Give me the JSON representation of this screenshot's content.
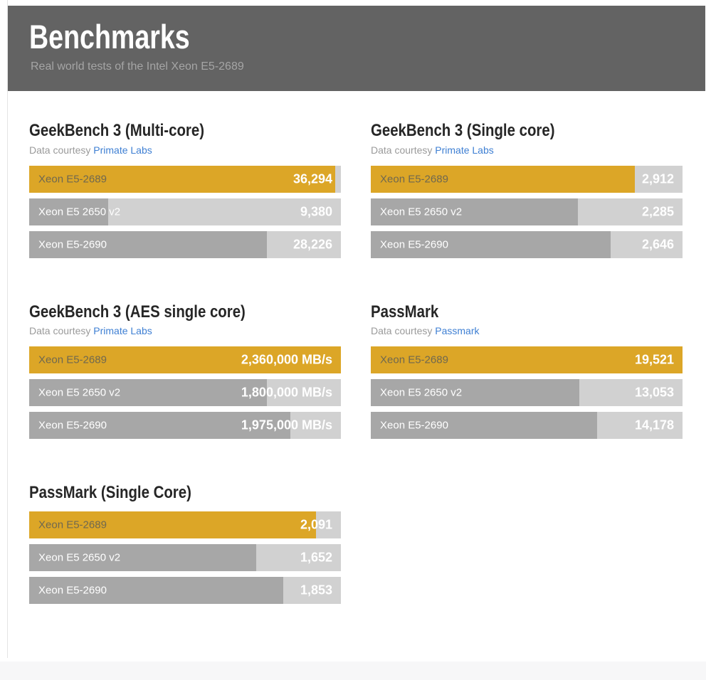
{
  "header": {
    "title": "Benchmarks",
    "subtitle": "Real world tests of the Intel Xeon E5-2689"
  },
  "theme": {
    "header_bg": "#636363",
    "highlight_gold": "#dca627",
    "bar_fill_gray": "#a7a7a7",
    "bar_track_gray": "#d1d1d1",
    "link_blue": "#3e7fd3",
    "highlight_label_color": "#6f6850",
    "value_text_color": "#ffffff"
  },
  "chart_data": [
    {
      "type": "bar",
      "title": "GeekBench 3 (Multi-core)",
      "courtesy": {
        "prefix": "Data courtesy ",
        "link": "Primate Labs"
      },
      "categories": [
        "Xeon E5-2689",
        "Xeon E5 2650 v2",
        "Xeon E5-2690"
      ],
      "values": [
        36294,
        9380,
        28226
      ],
      "value_labels": [
        "36,294",
        "9,380",
        "28,226"
      ],
      "scale_max": 37000,
      "highlight_index": 0,
      "legend_position": "none",
      "grid": false
    },
    {
      "type": "bar",
      "title": "GeekBench 3 (Single core)",
      "courtesy": {
        "prefix": "Data courtesy ",
        "link": "Primate Labs"
      },
      "categories": [
        "Xeon E5-2689",
        "Xeon E5 2650 v2",
        "Xeon E5-2690"
      ],
      "values": [
        2912,
        2285,
        2646
      ],
      "value_labels": [
        "2,912",
        "2,285",
        "2,646"
      ],
      "scale_max": 3440,
      "highlight_index": 0,
      "legend_position": "none",
      "grid": false
    },
    {
      "type": "bar",
      "title": "GeekBench 3 (AES single core)",
      "courtesy": {
        "prefix": "Data courtesy ",
        "link": "Primate Labs"
      },
      "categories": [
        "Xeon E5-2689",
        "Xeon E5 2650 v2",
        "Xeon E5-2690"
      ],
      "values": [
        2360000,
        1800000,
        1975000
      ],
      "value_labels": [
        "2,360,000 MB/s",
        "1,800,000 MB/s",
        "1,975,000 MB/s"
      ],
      "scale_max": 2360000,
      "highlight_index": 0,
      "legend_position": "none",
      "grid": false
    },
    {
      "type": "bar",
      "title": "PassMark",
      "courtesy": {
        "prefix": "Data courtesy ",
        "link": "Passmark"
      },
      "categories": [
        "Xeon E5-2689",
        "Xeon E5 2650 v2",
        "Xeon E5-2690"
      ],
      "values": [
        19521,
        13053,
        14178
      ],
      "value_labels": [
        "19,521",
        "13,053",
        "14,178"
      ],
      "scale_max": 19521,
      "highlight_index": 0,
      "legend_position": "none",
      "grid": false
    },
    {
      "type": "bar",
      "title": "PassMark (Single Core)",
      "courtesy": null,
      "categories": [
        "Xeon E5-2689",
        "Xeon E5 2650 v2",
        "Xeon E5-2690"
      ],
      "values": [
        2091,
        1652,
        1853
      ],
      "value_labels": [
        "2,091",
        "1,652",
        "1,853"
      ],
      "scale_max": 2270,
      "highlight_index": 0,
      "legend_position": "none",
      "grid": false
    }
  ]
}
